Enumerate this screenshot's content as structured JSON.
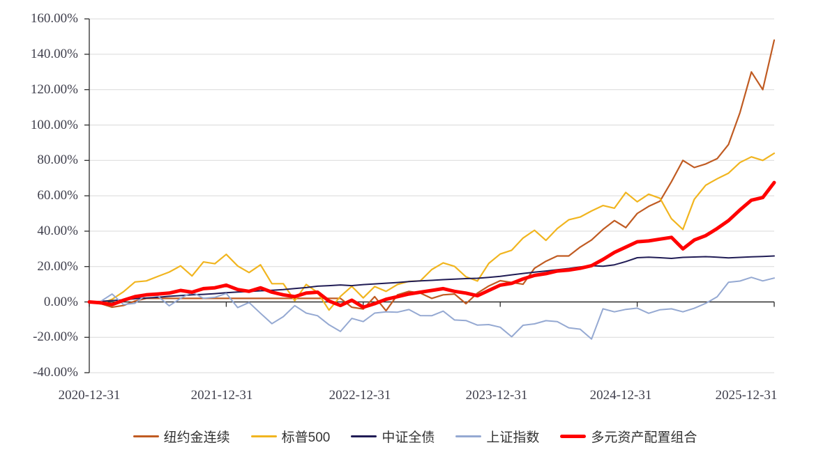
{
  "chart_data": {
    "type": "line",
    "title": "",
    "unit": "%",
    "grid": "horizontal",
    "grid_color": "#d9d9d9",
    "axis_color": "#2b2b2b",
    "legend_position": "bottom",
    "x_axis": {
      "tick_labels": [
        "2020-12-31",
        "2021-12-31",
        "2022-12-31",
        "2023-12-31",
        "2024-12-31",
        "2025-12-31"
      ]
    },
    "y_axis": {
      "tick_labels": [
        "160.00%",
        "140.00%",
        "120.00%",
        "100.00%",
        "80.00%",
        "60.00%",
        "40.00%",
        "20.00%",
        "0.00%",
        "-20.00%",
        "-40.00%"
      ],
      "tick_values": [
        160,
        140,
        120,
        100,
        80,
        60,
        40,
        20,
        0,
        -20,
        -40
      ],
      "min": -40,
      "max": 160
    },
    "sampling": "monthly cumulative return (%) from 2020-12-31 to 2025-12-31, 61 points per series",
    "series": [
      {
        "name": "纽约金连续",
        "color": "#c05b22",
        "line_width": 2.2,
        "values": [
          0,
          -1,
          -3,
          -2,
          0.5,
          2,
          2,
          2,
          2,
          2,
          2,
          2,
          2,
          2,
          2,
          2,
          2,
          2,
          2,
          2,
          2,
          2,
          2,
          -3,
          -4,
          3,
          -5,
          4,
          6,
          5,
          2,
          4,
          4.5,
          -1,
          5,
          9,
          12,
          11,
          10,
          19,
          23,
          26,
          26,
          31,
          35,
          41,
          46,
          42,
          50,
          54,
          57,
          68,
          80,
          76,
          78,
          81,
          89,
          107,
          130,
          120,
          148
        ]
      },
      {
        "name": "标普500",
        "color": "#f1b51f",
        "line_width": 2.2,
        "values": [
          0,
          -1.1,
          1.5,
          5.8,
          11.3,
          11.9,
          14.4,
          16.9,
          20.4,
          14.7,
          22.6,
          21.6,
          26.9,
          20.3,
          16.6,
          21,
          10.3,
          10.3,
          0.7,
          9.9,
          5.4,
          -4.6,
          3.1,
          8.8,
          2.3,
          8.7,
          6,
          9.9,
          11.6,
          11.9,
          18.3,
          22.1,
          20.1,
          14.2,
          11.8,
          21.8,
          27.1,
          29.2,
          36.1,
          40.5,
          34.8,
          41.5,
          46.4,
          48,
          51.4,
          54.5,
          53,
          61.9,
          56.6,
          60.9,
          58.6,
          47,
          41,
          58,
          66,
          69.6,
          72.8,
          78.8,
          82,
          80,
          84
        ]
      },
      {
        "name": "中证全债",
        "color": "#201c55",
        "line_width": 2,
        "values": [
          0,
          0.3,
          0.8,
          1.2,
          1.8,
          2.2,
          2.6,
          3.2,
          3.6,
          4,
          4.3,
          4.7,
          5.2,
          5.6,
          5.9,
          6.3,
          6.6,
          7,
          7.6,
          8.1,
          8.9,
          9.2,
          9.6,
          9.2,
          9.8,
          10.2,
          10.6,
          11,
          11.5,
          11.9,
          12.2,
          12.6,
          12.9,
          13.2,
          13.4,
          13.9,
          14.5,
          15.3,
          16.1,
          16.8,
          17.5,
          18.2,
          18.9,
          19.8,
          20.5,
          20.2,
          21,
          22.8,
          25,
          25.3,
          25,
          24.6,
          25.2,
          25.4,
          25.6,
          25.3,
          24.9,
          25.2,
          25.5,
          25.7,
          26
        ]
      },
      {
        "name": "上证指数",
        "color": "#95a9d2",
        "line_width": 2,
        "values": [
          0,
          0.3,
          4.5,
          -1.5,
          -0.8,
          4.1,
          3.4,
          -2.2,
          2,
          5.5,
          2.1,
          2.6,
          4.8,
          -3.2,
          -0.3,
          -6.4,
          -12.3,
          -8.3,
          -2.1,
          -6.3,
          -7.8,
          -12.9,
          -16.7,
          -9.3,
          -11.1,
          -6.3,
          -5.6,
          -5.8,
          -4.3,
          -7.7,
          -7.8,
          -5.2,
          -10.2,
          -10.5,
          -13.1,
          -12.8,
          -14.3,
          -19.7,
          -13.2,
          -12.4,
          -10.6,
          -11.1,
          -14.6,
          -15.4,
          -21,
          -3.9,
          -5.6,
          -4.2,
          -3.5,
          -6.4,
          -4.4,
          -3.9,
          -5.6,
          -3.6,
          -0.8,
          2.9,
          11.1,
          11.8,
          13.9,
          11.9,
          13.5
        ]
      },
      {
        "name": "多元资产配置组合",
        "color": "#ff0000",
        "line_width": 5,
        "values": [
          0,
          -0.5,
          -1.5,
          1,
          3,
          4,
          4.5,
          5,
          6.5,
          5.5,
          7.5,
          8,
          9.5,
          7,
          6,
          8,
          5.5,
          4,
          3,
          5,
          5.5,
          0.5,
          -2,
          1,
          -3,
          -1,
          1.5,
          3,
          4.5,
          5.5,
          6.5,
          7.5,
          6,
          5,
          3.5,
          6.5,
          9.5,
          10.5,
          13,
          15,
          16,
          17.5,
          18,
          19,
          20.5,
          24,
          28,
          31,
          34,
          34.5,
          35.5,
          36.5,
          30,
          35,
          37.5,
          41.5,
          46,
          52,
          57.5,
          59,
          67.5
        ]
      }
    ]
  }
}
